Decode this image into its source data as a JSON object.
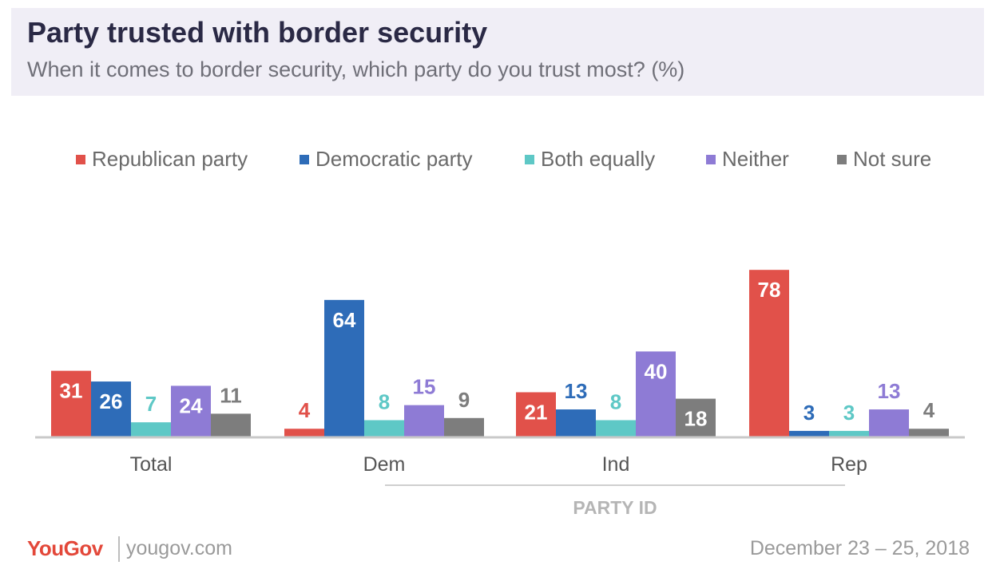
{
  "header": {
    "title": "Party trusted with border security",
    "subtitle": "When it comes to border security, which party do you trust most? (%)"
  },
  "chart_data": {
    "type": "bar",
    "title": "Party trusted with border security",
    "subtitle": "When it comes to border security, which party do you trust most? (%)",
    "xlabel": "",
    "ylabel": "",
    "ylim": [
      0,
      80
    ],
    "grid": false,
    "legend_position": "top",
    "categories": [
      "Total",
      "Dem",
      "Ind",
      "Rep"
    ],
    "group_label": "PARTY ID",
    "series": [
      {
        "name": "Republican party",
        "color": "#e1514a",
        "values": [
          31,
          4,
          21,
          78
        ]
      },
      {
        "name": "Democratic party",
        "color": "#2e6cb8",
        "values": [
          26,
          64,
          13,
          3
        ]
      },
      {
        "name": "Both equally",
        "color": "#5ec8c6",
        "values": [
          7,
          8,
          8,
          3
        ]
      },
      {
        "name": "Neither",
        "color": "#8e7bd5",
        "values": [
          24,
          15,
          40,
          13
        ]
      },
      {
        "name": "Not sure",
        "color": "#7d7d7d",
        "values": [
          11,
          9,
          18,
          4
        ]
      }
    ]
  },
  "footer": {
    "logo": "YouGov",
    "site": "yougov.com",
    "date": "December 23 – 25, 2018"
  }
}
